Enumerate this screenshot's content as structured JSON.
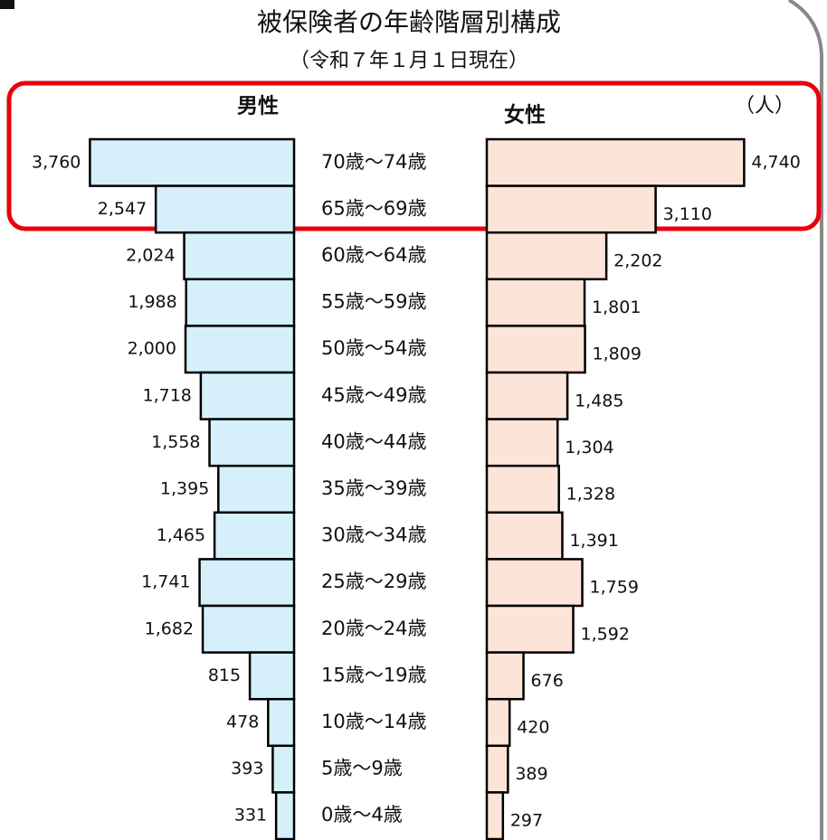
{
  "chart_data": {
    "type": "pyramid",
    "title": "被保険者の年齢階層別構成",
    "subtitle": "（令和７年１月１日現在）",
    "unit_label": "（人）",
    "categories": [
      "70歳〜74歳",
      "65歳〜69歳",
      "60歳〜64歳",
      "55歳〜59歳",
      "50歳〜54歳",
      "45歳〜49歳",
      "40歳〜44歳",
      "35歳〜39歳",
      "30歳〜34歳",
      "25歳〜29歳",
      "20歳〜24歳",
      "15歳〜19歳",
      "10歳〜14歳",
      "5歳〜9歳",
      "0歳〜4歳"
    ],
    "series": [
      {
        "name": "男性",
        "color": "#d5f0fb",
        "values": [
          3760,
          2547,
          2024,
          1988,
          2000,
          1718,
          1558,
          1395,
          1465,
          1741,
          1682,
          815,
          478,
          393,
          331
        ],
        "value_labels": [
          "3,760",
          "2,547",
          "2,024",
          "1,988",
          "2,000",
          "1,718",
          "1,558",
          "1,395",
          "1,465",
          "1,741",
          "1,682",
          "815",
          "478",
          "393",
          "331"
        ]
      },
      {
        "name": "女性",
        "color": "#fde4d8",
        "values": [
          4740,
          3110,
          2202,
          1801,
          1809,
          1485,
          1304,
          1328,
          1391,
          1759,
          1592,
          676,
          420,
          389,
          297
        ],
        "value_labels": [
          "4,740",
          "3,110",
          "2,202",
          "1,801",
          "1,809",
          "1,485",
          "1,304",
          "1,328",
          "1,391",
          "1,759",
          "1,592",
          "676",
          "420",
          "389",
          "297"
        ]
      }
    ]
  }
}
